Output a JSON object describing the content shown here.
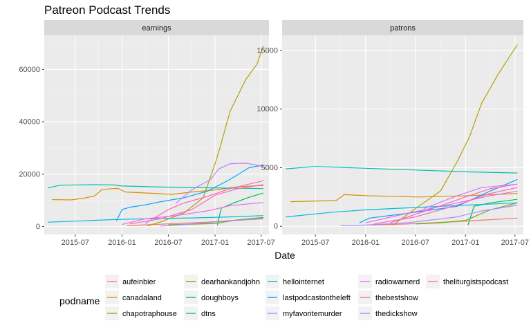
{
  "chart_data": {
    "type": "line",
    "title": "Patreon Podcast Trends",
    "xlabel": "Date",
    "legend_title": "podname",
    "legend_position": "bottom",
    "x_ticks": [
      "2015-07",
      "2016-01",
      "2016-07",
      "2017-01",
      "2017-07"
    ],
    "series": [
      {
        "name": "aufeinbier",
        "color": "#F8766D"
      },
      {
        "name": "canadaland",
        "color": "#DB8E00"
      },
      {
        "name": "chapotraphouse",
        "color": "#AEA200"
      },
      {
        "name": "dearhankandjohn",
        "color": "#64B200"
      },
      {
        "name": "doughboys",
        "color": "#00BD5C"
      },
      {
        "name": "dtns",
        "color": "#00C1A7"
      },
      {
        "name": "hellointernet",
        "color": "#00BADE"
      },
      {
        "name": "lastpodcastontheleft",
        "color": "#00A6FF"
      },
      {
        "name": "myfavoritemurder",
        "color": "#B385FF"
      },
      {
        "name": "radiowarnerd",
        "color": "#EF67EB"
      },
      {
        "name": "thebestshow",
        "color": "#FF63B6"
      },
      {
        "name": "thedickshow",
        "color": "#C77CFF"
      },
      {
        "name": "theliturgistspodcast",
        "color": "#FF61C3"
      }
    ],
    "panels": [
      {
        "strip": "earnings",
        "y_ticks": [
          0,
          20000,
          40000,
          60000
        ],
        "y_tick_labels": [
          "0",
          "20000",
          "40000",
          "60000"
        ],
        "ylim": [
          -3000,
          73000
        ],
        "lines": [
          {
            "series": "aufeinbier",
            "points": [
              [
                "2016-01-20",
                400
              ],
              [
                "2016-06-01",
                900
              ],
              [
                "2016-12-01",
                1700
              ],
              [
                "2017-07-10",
                3200
              ]
            ]
          },
          {
            "series": "canadaland",
            "points": [
              [
                "2015-04-01",
                10300
              ],
              [
                "2015-06-15",
                10200
              ],
              [
                "2015-08-01",
                10800
              ],
              [
                "2015-09-15",
                11700
              ],
              [
                "2015-10-15",
                14200
              ],
              [
                "2015-12-15",
                14600
              ],
              [
                "2016-01-15",
                13200
              ],
              [
                "2016-05-01",
                12700
              ],
              [
                "2016-07-15",
                12300
              ],
              [
                "2016-10-01",
                13200
              ],
              [
                "2017-01-01",
                14000
              ],
              [
                "2017-04-01",
                15200
              ],
              [
                "2017-07-10",
                15700
              ]
            ]
          },
          {
            "series": "chapotraphouse",
            "points": [
              [
                "2016-04-10",
                300
              ],
              [
                "2016-06-01",
                1800
              ],
              [
                "2016-09-01",
                5200
              ],
              [
                "2016-11-15",
                11000
              ],
              [
                "2017-01-01",
                24000
              ],
              [
                "2017-01-20",
                30000
              ],
              [
                "2017-03-01",
                44000
              ],
              [
                "2017-05-01",
                56000
              ],
              [
                "2017-06-15",
                62000
              ],
              [
                "2017-07-10",
                69000
              ]
            ]
          },
          {
            "series": "dearhankandjohn",
            "points": [
              [
                "2016-07-01",
                700
              ],
              [
                "2016-10-01",
                900
              ],
              [
                "2017-01-01",
                1200
              ],
              [
                "2017-04-01",
                2600
              ],
              [
                "2017-07-10",
                3500
              ]
            ]
          },
          {
            "series": "doughboys",
            "points": [
              [
                "2017-01-10",
                500
              ],
              [
                "2017-01-25",
                7000
              ],
              [
                "2017-03-15",
                9000
              ],
              [
                "2017-05-15",
                11200
              ],
              [
                "2017-07-10",
                12800
              ]
            ]
          },
          {
            "series": "dtns",
            "points": [
              [
                "2015-03-15",
                14700
              ],
              [
                "2015-05-01",
                15800
              ],
              [
                "2015-09-01",
                16000
              ],
              [
                "2015-12-01",
                15900
              ],
              [
                "2016-01-01",
                15500
              ],
              [
                "2016-06-01",
                15100
              ],
              [
                "2016-12-01",
                14800
              ],
              [
                "2017-07-10",
                14500
              ]
            ]
          },
          {
            "series": "hellointernet",
            "points": [
              [
                "2015-03-15",
                1700
              ],
              [
                "2015-08-01",
                2200
              ],
              [
                "2015-12-01",
                2700
              ],
              [
                "2016-04-01",
                3000
              ],
              [
                "2016-10-01",
                3300
              ],
              [
                "2017-03-01",
                3700
              ],
              [
                "2017-07-10",
                4200
              ]
            ]
          },
          {
            "series": "lastpodcastontheleft",
            "points": [
              [
                "2015-12-10",
                2200
              ],
              [
                "2016-01-01",
                6500
              ],
              [
                "2016-02-01",
                7400
              ],
              [
                "2016-04-01",
                8300
              ],
              [
                "2016-06-01",
                9500
              ],
              [
                "2016-09-01",
                11000
              ],
              [
                "2016-12-01",
                13500
              ],
              [
                "2017-03-01",
                18000
              ],
              [
                "2017-05-15",
                22500
              ],
              [
                "2017-07-10",
                23500
              ]
            ]
          },
          {
            "series": "myfavoritemurder",
            "points": [
              [
                "2016-06-01",
                200
              ],
              [
                "2016-09-01",
                800
              ],
              [
                "2016-12-01",
                1500
              ],
              [
                "2017-03-01",
                2200
              ],
              [
                "2017-07-10",
                3000
              ]
            ]
          },
          {
            "series": "radiowarnerd",
            "points": [
              [
                "2016-01-01",
                800
              ],
              [
                "2016-04-01",
                3000
              ],
              [
                "2016-08-01",
                4200
              ],
              [
                "2016-12-01",
                6000
              ],
              [
                "2017-03-01",
                8000
              ],
              [
                "2017-07-10",
                9200
              ]
            ]
          },
          {
            "series": "thebestshow",
            "points": [
              [
                "2016-04-01",
                1200
              ],
              [
                "2016-07-01",
                6500
              ],
              [
                "2016-09-01",
                9000
              ],
              [
                "2016-12-01",
                11500
              ],
              [
                "2017-03-01",
                14500
              ],
              [
                "2017-07-10",
                17500
              ]
            ]
          },
          {
            "series": "thedickshow",
            "points": [
              [
                "2016-08-01",
                9000
              ],
              [
                "2016-10-01",
                14000
              ],
              [
                "2016-12-15",
                18000
              ],
              [
                "2017-01-15",
                22000
              ],
              [
                "2017-03-01",
                24000
              ],
              [
                "2017-05-01",
                24200
              ],
              [
                "2017-07-10",
                23000
              ]
            ]
          },
          {
            "series": "theliturgistspodcast",
            "points": [
              [
                "2016-02-01",
                1000
              ],
              [
                "2016-06-01",
                3000
              ],
              [
                "2016-10-01",
                6500
              ],
              [
                "2017-01-01",
                12000
              ],
              [
                "2017-04-01",
                14500
              ],
              [
                "2017-07-10",
                16000
              ]
            ]
          }
        ]
      },
      {
        "strip": "patrons",
        "y_ticks": [
          0,
          5000,
          10000,
          15000
        ],
        "y_tick_labels": [
          "0",
          "5000",
          "10000",
          "15000"
        ],
        "ylim": [
          -700,
          16300
        ],
        "lines": [
          {
            "series": "aufeinbier",
            "points": [
              [
                "2016-01-20",
                100
              ],
              [
                "2016-06-01",
                200
              ],
              [
                "2016-12-01",
                400
              ],
              [
                "2017-07-10",
                700
              ]
            ]
          },
          {
            "series": "canadaland",
            "points": [
              [
                "2015-04-01",
                2100
              ],
              [
                "2015-09-15",
                2200
              ],
              [
                "2015-10-15",
                2700
              ],
              [
                "2016-01-15",
                2600
              ],
              [
                "2016-07-15",
                2500
              ],
              [
                "2017-01-01",
                2600
              ],
              [
                "2017-07-10",
                2800
              ]
            ]
          },
          {
            "series": "chapotraphouse",
            "points": [
              [
                "2016-04-10",
                100
              ],
              [
                "2016-07-01",
                1500
              ],
              [
                "2016-10-01",
                3000
              ],
              [
                "2016-12-01",
                5500
              ],
              [
                "2017-01-15",
                7600
              ],
              [
                "2017-03-01",
                10500
              ],
              [
                "2017-05-01",
                13000
              ],
              [
                "2017-07-10",
                15500
              ]
            ]
          },
          {
            "series": "dearhankandjohn",
            "points": [
              [
                "2016-07-01",
                200
              ],
              [
                "2016-10-01",
                300
              ],
              [
                "2017-01-01",
                500
              ],
              [
                "2017-04-01",
                1400
              ],
              [
                "2017-07-10",
                2000
              ]
            ]
          },
          {
            "series": "doughboys",
            "points": [
              [
                "2017-01-10",
                100
              ],
              [
                "2017-02-01",
                1700
              ],
              [
                "2017-04-01",
                2000
              ],
              [
                "2017-07-10",
                2300
              ]
            ]
          },
          {
            "series": "dtns",
            "points": [
              [
                "2015-03-15",
                4900
              ],
              [
                "2015-07-01",
                5100
              ],
              [
                "2016-01-01",
                4950
              ],
              [
                "2016-07-01",
                4800
              ],
              [
                "2017-01-01",
                4650
              ],
              [
                "2017-07-10",
                4550
              ]
            ]
          },
          {
            "series": "hellointernet",
            "points": [
              [
                "2015-03-15",
                800
              ],
              [
                "2015-09-01",
                1200
              ],
              [
                "2016-01-01",
                1400
              ],
              [
                "2016-07-01",
                1600
              ],
              [
                "2017-01-01",
                1800
              ],
              [
                "2017-07-10",
                2000
              ]
            ]
          },
          {
            "series": "lastpodcastontheleft",
            "points": [
              [
                "2015-12-10",
                300
              ],
              [
                "2016-01-15",
                700
              ],
              [
                "2016-06-01",
                1100
              ],
              [
                "2016-12-01",
                1700
              ],
              [
                "2017-04-01",
                3000
              ],
              [
                "2017-07-10",
                4000
              ]
            ]
          },
          {
            "series": "myfavoritemurder",
            "points": [
              [
                "2015-10-01",
                50
              ],
              [
                "2016-01-01",
                100
              ],
              [
                "2016-06-01",
                300
              ],
              [
                "2016-12-01",
                800
              ],
              [
                "2017-03-01",
                1300
              ],
              [
                "2017-07-10",
                1800
              ]
            ]
          },
          {
            "series": "radiowarnerd",
            "points": [
              [
                "2016-01-01",
                300
              ],
              [
                "2016-06-01",
                1100
              ],
              [
                "2016-12-01",
                2000
              ],
              [
                "2017-04-01",
                2600
              ],
              [
                "2017-07-10",
                3000
              ]
            ]
          },
          {
            "series": "thebestshow",
            "points": [
              [
                "2016-04-01",
                300
              ],
              [
                "2016-09-01",
                1500
              ],
              [
                "2017-01-01",
                2500
              ],
              [
                "2017-04-01",
                3200
              ],
              [
                "2017-07-10",
                3600
              ]
            ]
          },
          {
            "series": "thedickshow",
            "points": [
              [
                "2016-08-01",
                1500
              ],
              [
                "2016-12-01",
                2600
              ],
              [
                "2017-03-01",
                3300
              ],
              [
                "2017-07-10",
                3600
              ]
            ]
          },
          {
            "series": "theliturgistspodcast",
            "points": [
              [
                "2016-02-01",
                200
              ],
              [
                "2016-07-01",
                800
              ],
              [
                "2016-12-01",
                1800
              ],
              [
                "2017-04-01",
                2800
              ],
              [
                "2017-07-10",
                3300
              ]
            ]
          }
        ]
      }
    ]
  }
}
